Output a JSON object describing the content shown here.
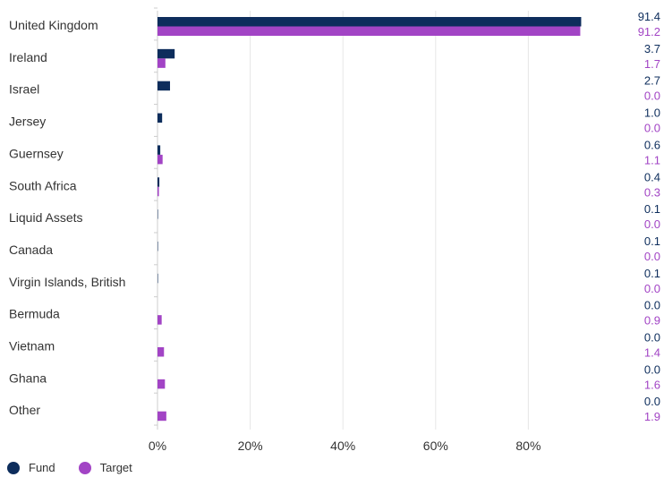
{
  "chart_data": {
    "type": "bar",
    "orientation": "horizontal",
    "categories": [
      "United Kingdom",
      "Ireland",
      "Israel",
      "Jersey",
      "Guernsey",
      "South Africa",
      "Liquid Assets",
      "Canada",
      "Virgin Islands, British",
      "Bermuda",
      "Vietnam",
      "Ghana",
      "Other"
    ],
    "series": [
      {
        "name": "Fund",
        "color": "#0d2d5c",
        "values": [
          91.4,
          3.7,
          2.7,
          1.0,
          0.6,
          0.4,
          0.1,
          0.1,
          0.1,
          0.0,
          0.0,
          0.0,
          0.0
        ],
        "labels": [
          "91.4",
          "3.7",
          "2.7",
          "1.0",
          "0.6",
          "0.4",
          "0.1",
          "0.1",
          "0.1",
          "0.0",
          "0.0",
          "0.0",
          "0.0"
        ]
      },
      {
        "name": "Target",
        "color": "#a244c5",
        "values": [
          91.2,
          1.7,
          0.0,
          0.0,
          1.1,
          0.3,
          0.0,
          0.0,
          0.0,
          0.9,
          1.4,
          1.6,
          1.9
        ],
        "labels": [
          "91.2",
          "1.7",
          "0.0",
          "0.0",
          "1.1",
          "0.3",
          "0.0",
          "0.0",
          "0.0",
          "0.9",
          "1.4",
          "1.6",
          "1.9"
        ]
      }
    ],
    "xticks": [
      "0%",
      "20%",
      "40%",
      "60%",
      "80%"
    ],
    "xtick_values": [
      0,
      20,
      40,
      60,
      80
    ],
    "xlim": [
      0,
      100
    ],
    "grid": true,
    "legend_position": "bottom-left"
  }
}
